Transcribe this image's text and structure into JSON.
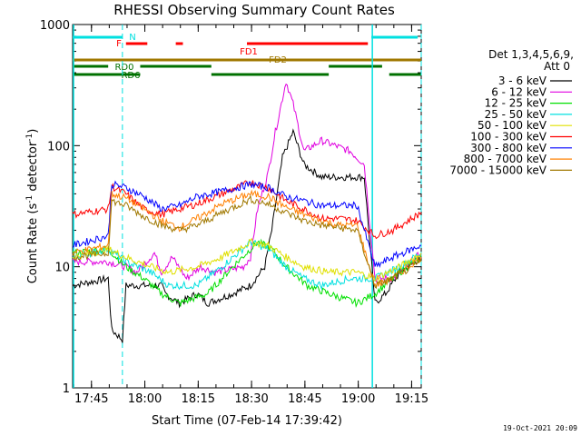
{
  "chart_data": {
    "type": "line",
    "title": "RHESSI Observing Summary Count Rates",
    "xlabel": "Start Time (07-Feb-14 17:39:42)",
    "ylabel_parts": [
      "Count Rate (s",
      "-1",
      " detector",
      "-1",
      ")"
    ],
    "y_scale": "log",
    "ylim": [
      1,
      1000
    ],
    "xlim_min": [
      0,
      98
    ],
    "x_ticks": [
      {
        "min": 5.3,
        "label": "17:45"
      },
      {
        "min": 20.3,
        "label": "18:00"
      },
      {
        "min": 35.3,
        "label": "18:15"
      },
      {
        "min": 50.3,
        "label": "18:30"
      },
      {
        "min": 65.3,
        "label": "18:45"
      },
      {
        "min": 80.3,
        "label": "19:00"
      },
      {
        "min": 95.3,
        "label": "19:15"
      }
    ],
    "y_ticks": [
      {
        "value": 1,
        "label": "1"
      },
      {
        "value": 10,
        "label": "10"
      },
      {
        "value": 100,
        "label": "100"
      },
      {
        "value": 1000,
        "label": "1000"
      }
    ],
    "legend_header": [
      "Det 1,3,4,5,6,9,",
      "Att 0"
    ],
    "series": [
      {
        "name": "3 - 6 keV",
        "color": "#000000",
        "points": [
          [
            0,
            7
          ],
          [
            10,
            8
          ],
          [
            11,
            3
          ],
          [
            14,
            2.5
          ],
          [
            15,
            7
          ],
          [
            25,
            7
          ],
          [
            26,
            6
          ],
          [
            30,
            5
          ],
          [
            35,
            6
          ],
          [
            38,
            5
          ],
          [
            45,
            6
          ],
          [
            50,
            7
          ],
          [
            54,
            10
          ],
          [
            56,
            20
          ],
          [
            59,
            80
          ],
          [
            62,
            130
          ],
          [
            65,
            70
          ],
          [
            70,
            55
          ],
          [
            82,
            55
          ],
          [
            85,
            5
          ],
          [
            88,
            6
          ],
          [
            92,
            9
          ],
          [
            98,
            12
          ]
        ]
      },
      {
        "name": "6 - 12 keV",
        "color": "#e000e0",
        "points": [
          [
            0,
            11
          ],
          [
            10,
            11
          ],
          [
            15,
            10
          ],
          [
            18,
            9
          ],
          [
            23,
            13
          ],
          [
            25,
            9
          ],
          [
            28,
            12
          ],
          [
            32,
            8
          ],
          [
            36,
            10
          ],
          [
            40,
            9
          ],
          [
            48,
            10
          ],
          [
            50,
            12
          ],
          [
            52,
            30
          ],
          [
            55,
            60
          ],
          [
            57,
            130
          ],
          [
            60,
            340
          ],
          [
            62,
            220
          ],
          [
            65,
            90
          ],
          [
            70,
            110
          ],
          [
            78,
            90
          ],
          [
            82,
            70
          ],
          [
            85,
            8
          ],
          [
            90,
            8
          ],
          [
            98,
            13
          ]
        ]
      },
      {
        "name": "12 - 25 keV",
        "color": "#00e000",
        "points": [
          [
            0,
            13
          ],
          [
            10,
            14
          ],
          [
            15,
            10
          ],
          [
            20,
            8
          ],
          [
            25,
            6
          ],
          [
            30,
            5
          ],
          [
            38,
            6
          ],
          [
            45,
            10
          ],
          [
            52,
            16
          ],
          [
            56,
            14
          ],
          [
            60,
            10
          ],
          [
            66,
            7
          ],
          [
            72,
            6
          ],
          [
            80,
            5
          ],
          [
            85,
            6
          ],
          [
            92,
            9
          ],
          [
            98,
            12
          ]
        ]
      },
      {
        "name": "25 - 50 keV",
        "color": "#00e0e0",
        "points": [
          [
            0,
            12
          ],
          [
            10,
            14
          ],
          [
            15,
            11
          ],
          [
            22,
            9
          ],
          [
            27,
            7
          ],
          [
            35,
            7
          ],
          [
            42,
            10
          ],
          [
            50,
            16
          ],
          [
            55,
            14
          ],
          [
            60,
            10
          ],
          [
            65,
            8
          ],
          [
            70,
            7
          ],
          [
            78,
            8
          ],
          [
            82,
            8
          ],
          [
            85,
            8
          ],
          [
            92,
            10
          ],
          [
            98,
            13
          ]
        ]
      },
      {
        "name": "50 - 100 keV",
        "color": "#e0e000",
        "points": [
          [
            0,
            12
          ],
          [
            10,
            14
          ],
          [
            15,
            12
          ],
          [
            22,
            10
          ],
          [
            27,
            9
          ],
          [
            35,
            10
          ],
          [
            42,
            12
          ],
          [
            50,
            16
          ],
          [
            55,
            15
          ],
          [
            60,
            12
          ],
          [
            65,
            10
          ],
          [
            72,
            9
          ],
          [
            80,
            9
          ],
          [
            85,
            8
          ],
          [
            92,
            10
          ],
          [
            98,
            13
          ]
        ]
      },
      {
        "name": "100 - 300 keV",
        "color": "#ff0000",
        "points": [
          [
            0,
            27
          ],
          [
            10,
            30
          ],
          [
            11,
            46
          ],
          [
            15,
            40
          ],
          [
            20,
            30
          ],
          [
            25,
            27
          ],
          [
            30,
            30
          ],
          [
            35,
            33
          ],
          [
            42,
            40
          ],
          [
            50,
            50
          ],
          [
            55,
            45
          ],
          [
            60,
            35
          ],
          [
            65,
            30
          ],
          [
            70,
            25
          ],
          [
            75,
            25
          ],
          [
            80,
            24
          ],
          [
            85,
            18
          ],
          [
            90,
            20
          ],
          [
            98,
            28
          ]
        ]
      },
      {
        "name": "300 - 800 keV",
        "color": "#0000ff",
        "points": [
          [
            0,
            15
          ],
          [
            10,
            18
          ],
          [
            11,
            48
          ],
          [
            15,
            45
          ],
          [
            20,
            38
          ],
          [
            25,
            30
          ],
          [
            30,
            32
          ],
          [
            35,
            38
          ],
          [
            42,
            42
          ],
          [
            50,
            48
          ],
          [
            55,
            45
          ],
          [
            60,
            38
          ],
          [
            65,
            35
          ],
          [
            70,
            32
          ],
          [
            75,
            32
          ],
          [
            80,
            32
          ],
          [
            85,
            10
          ],
          [
            90,
            12
          ],
          [
            98,
            15
          ]
        ]
      },
      {
        "name": "800 - 7000 keV",
        "color": "#ff8000",
        "points": [
          [
            0,
            13
          ],
          [
            10,
            15
          ],
          [
            11,
            40
          ],
          [
            15,
            37
          ],
          [
            20,
            30
          ],
          [
            25,
            24
          ],
          [
            30,
            21
          ],
          [
            35,
            25
          ],
          [
            42,
            33
          ],
          [
            50,
            40
          ],
          [
            55,
            38
          ],
          [
            60,
            31
          ],
          [
            65,
            27
          ],
          [
            70,
            24
          ],
          [
            75,
            22
          ],
          [
            80,
            22
          ],
          [
            85,
            7
          ],
          [
            90,
            8
          ],
          [
            98,
            12
          ]
        ]
      },
      {
        "name": "7000 - 15000 keV",
        "color": "#a07800",
        "points": [
          [
            0,
            12
          ],
          [
            10,
            13
          ],
          [
            11,
            35
          ],
          [
            15,
            32
          ],
          [
            20,
            26
          ],
          [
            25,
            22
          ],
          [
            30,
            20
          ],
          [
            35,
            22
          ],
          [
            42,
            28
          ],
          [
            50,
            36
          ],
          [
            55,
            33
          ],
          [
            60,
            28
          ],
          [
            65,
            24
          ],
          [
            70,
            22
          ],
          [
            75,
            21
          ],
          [
            80,
            20
          ],
          [
            85,
            7
          ],
          [
            90,
            8
          ],
          [
            98,
            11
          ]
        ]
      }
    ],
    "flags": [
      {
        "label": "N",
        "color": "#00e0e0",
        "row": 1,
        "spans": [
          [
            0,
            14
          ],
          [
            84,
            97
          ]
        ]
      },
      {
        "label": "F",
        "color": "#ff0000",
        "row": 2,
        "spans": [
          [
            15,
            21
          ],
          [
            29,
            31
          ],
          [
            49,
            83
          ]
        ]
      },
      {
        "label": "FD1",
        "color": "#ff0000",
        "row": 3,
        "spans": []
      },
      {
        "label": "FD2",
        "color": "#a07800",
        "row": 4,
        "spans": [
          [
            0,
            98
          ]
        ]
      },
      {
        "label": "RD0",
        "color": "#007000",
        "row": 5,
        "spans": [
          [
            0,
            10
          ],
          [
            19,
            39
          ],
          [
            72,
            87
          ]
        ]
      },
      {
        "label": "RD6",
        "color": "#007000",
        "row": 6,
        "spans": [
          [
            0,
            19
          ],
          [
            39,
            72
          ],
          [
            89,
            98
          ]
        ]
      }
    ],
    "vlines_solid_min": [
      0,
      84
    ],
    "vlines_dashed_min": [
      14,
      98
    ],
    "timestamp": "19-Oct-2021 20:09"
  }
}
